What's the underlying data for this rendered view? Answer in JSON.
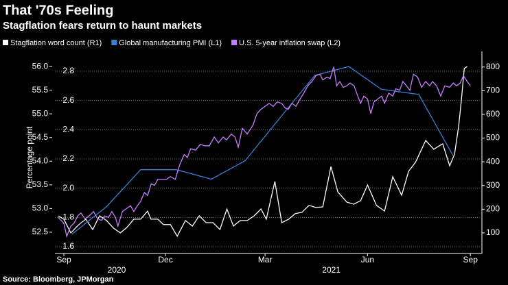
{
  "chart_data": {
    "type": "line",
    "title": "That '70s Feeling",
    "subtitle": "Stagflation fears return to haunt markets",
    "source": "Source: Bloomberg, JPMorgan",
    "y3_axis_label": "Percentage point",
    "legend": "top",
    "grid": true,
    "xlim": [
      2020.645,
      2021.692
    ],
    "xticks": [
      {
        "value": 2020.667,
        "label": "Sep"
      },
      {
        "value": 2020.917,
        "label": "Dec"
      },
      {
        "value": 2021.162,
        "label": "Mar"
      },
      {
        "value": 2021.414,
        "label": "Jun"
      },
      {
        "value": 2021.667,
        "label": "Sep"
      }
    ],
    "year_labels": [
      {
        "value": 2020.797,
        "label": "2020"
      },
      {
        "value": 2021.325,
        "label": "2021"
      }
    ],
    "ylim": [
      52.05,
      56.32
    ],
    "yticks": [
      52.5,
      {
        "value": 53,
        "label": "53.0"
      },
      53.5,
      {
        "value": 54,
        "label": "54.0"
      },
      54.5,
      {
        "value": 55,
        "label": "55.0"
      },
      55.5,
      {
        "value": 56,
        "label": "56.0"
      }
    ],
    "y3lim": [
      1.553,
      2.936
    ],
    "y3ticks": [
      1.6,
      1.8,
      {
        "value": 2,
        "label": "2.0"
      },
      2.2,
      2.4,
      2.6,
      2.8
    ],
    "y2lim": [
      13,
      866
    ],
    "y2ticks": [
      100,
      200,
      300,
      400,
      500,
      600,
      700,
      800
    ],
    "series": [
      {
        "name": "Stagflation word count (R1)",
        "color": "#ffffff",
        "axis": "y2",
        "x": [
          2020.653,
          2020.667,
          2020.684,
          2020.704,
          2020.721,
          2020.738,
          2020.755,
          2020.772,
          2020.789,
          2020.806,
          2020.822,
          2020.839,
          2020.856,
          2020.873,
          2020.881,
          2020.898,
          2020.912,
          2020.929,
          2020.946,
          2020.966,
          2020.983,
          2021.0,
          2021.017,
          2021.034,
          2021.051,
          2021.068,
          2021.084,
          2021.101,
          2021.118,
          2021.135,
          2021.152,
          2021.165,
          2021.186,
          2021.203,
          2021.22,
          2021.236,
          2021.253,
          2021.27,
          2021.287,
          2021.304,
          2021.324,
          2021.341,
          2021.363,
          2021.38,
          2021.397,
          2021.414,
          2021.436,
          2021.456,
          2021.476,
          2021.498,
          2021.515,
          2021.532,
          2021.557,
          2021.577,
          2021.599,
          2021.616,
          2021.628,
          2021.638,
          2021.645,
          2021.652,
          2021.659
        ],
        "values": [
          172,
          158,
          100,
          135,
          158,
          114,
          172,
          152,
          120,
          100,
          123,
          158,
          158,
          192,
          158,
          158,
          135,
          135,
          86,
          152,
          129,
          172,
          143,
          143,
          114,
          201,
          129,
          152,
          152,
          172,
          201,
          158,
          317,
          143,
          158,
          181,
          187,
          216,
          207,
          210,
          380,
          273,
          230,
          221,
          236,
          302,
          216,
          192,
          337,
          259,
          360,
          398,
          490,
          453,
          476,
          383,
          432,
          547,
          664,
          794,
          802
        ]
      },
      {
        "name": "Global manufacturing PMI (L1)",
        "color": "#3a7fd5",
        "axis": "y",
        "x": [
          2020.687,
          2020.772,
          2020.856,
          2020.944,
          2021.03,
          2021.113,
          2021.202,
          2021.284,
          2021.368,
          2021.448,
          2021.54,
          2021.625
        ],
        "values": [
          52.46,
          53.04,
          53.82,
          53.82,
          53.62,
          54.01,
          54.95,
          55.81,
          56.0,
          55.52,
          55.41,
          54.11
        ]
      },
      {
        "name": "U.S. 5-year inflation swap (L2)",
        "color": "#c77dff",
        "axis": "y3",
        "x": [
          2020.653,
          2020.667,
          2020.674,
          2020.684,
          2020.692,
          2020.701,
          2020.709,
          2020.719,
          2020.729,
          2020.74,
          2020.75,
          2020.76,
          2020.767,
          2020.777,
          2020.785,
          2020.794,
          2020.8,
          2020.811,
          2020.821,
          2020.831,
          2020.839,
          2020.848,
          2020.856,
          2020.865,
          2020.873,
          2020.882,
          2020.89,
          2020.898,
          2020.909,
          2020.919,
          2020.929,
          2020.941,
          2020.952,
          2020.963,
          2020.971,
          2020.979,
          2020.991,
          2021.003,
          2021.013,
          2021.025,
          2021.037,
          2021.047,
          2021.059,
          2021.067,
          2021.079,
          2021.088,
          2021.096,
          2021.106,
          2021.118,
          2021.132,
          2021.142,
          2021.152,
          2021.162,
          2021.172,
          2021.182,
          2021.192,
          2021.203,
          2021.211,
          2021.219,
          2021.228,
          2021.238,
          2021.248,
          2021.257,
          2021.267,
          2021.277,
          2021.287,
          2021.297,
          2021.304,
          2021.314,
          2021.322,
          2021.331,
          2021.338,
          2021.346,
          2021.354,
          2021.363,
          2021.371,
          2021.381,
          2021.39,
          2021.397,
          2021.405,
          2021.414,
          2021.422,
          2021.43,
          2021.439,
          2021.449,
          2021.456,
          2021.466,
          2021.476,
          2021.484,
          2021.493,
          2021.501,
          2021.51,
          2021.518,
          2021.527,
          2021.537,
          2021.547,
          2021.557,
          2021.567,
          2021.574,
          2021.584,
          2021.594,
          2021.604,
          2021.616,
          2021.625,
          2021.633,
          2021.642,
          2021.65,
          2021.659,
          2021.667
        ],
        "values": [
          1.8,
          1.76,
          1.67,
          1.74,
          1.76,
          1.81,
          1.83,
          1.79,
          1.81,
          1.84,
          1.79,
          1.78,
          1.81,
          1.8,
          1.84,
          1.8,
          1.74,
          1.84,
          1.86,
          1.88,
          1.84,
          1.88,
          1.91,
          1.97,
          1.95,
          2.03,
          2.02,
          2.06,
          2.06,
          2.06,
          2.08,
          2.06,
          2.16,
          2.23,
          2.21,
          2.27,
          2.26,
          2.3,
          2.29,
          2.29,
          2.35,
          2.31,
          2.35,
          2.33,
          2.37,
          2.35,
          2.28,
          2.41,
          2.37,
          2.43,
          2.51,
          2.54,
          2.56,
          2.58,
          2.56,
          2.59,
          2.58,
          2.55,
          2.54,
          2.58,
          2.56,
          2.61,
          2.65,
          2.7,
          2.73,
          2.77,
          2.78,
          2.74,
          2.76,
          2.75,
          2.83,
          2.7,
          2.73,
          2.69,
          2.7,
          2.72,
          2.7,
          2.63,
          2.58,
          2.63,
          2.61,
          2.51,
          2.59,
          2.61,
          2.63,
          2.58,
          2.65,
          2.63,
          2.68,
          2.67,
          2.73,
          2.7,
          2.67,
          2.78,
          2.76,
          2.69,
          2.73,
          2.7,
          2.73,
          2.7,
          2.63,
          2.7,
          2.69,
          2.72,
          2.7,
          2.72,
          2.77,
          2.73,
          2.7
        ]
      }
    ]
  }
}
